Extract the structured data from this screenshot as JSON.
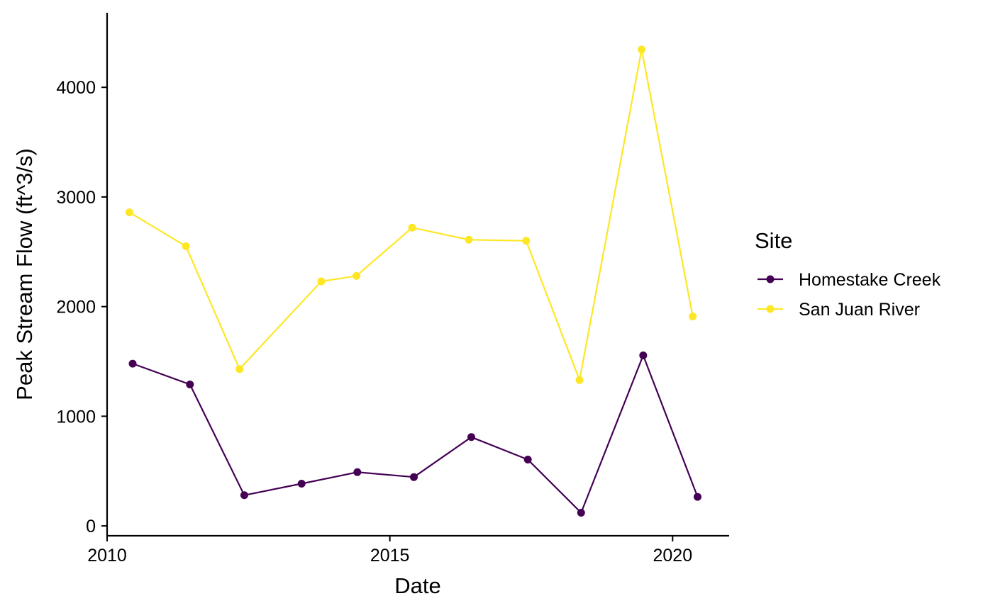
{
  "chart_data": {
    "type": "line",
    "title": "",
    "xlabel": "Date",
    "ylabel": "Peak Stream Flow (ft^3/s)",
    "xlim": [
      "2010-01-01",
      "2020-12-31"
    ],
    "ylim": [
      -90,
      4680
    ],
    "x_ticks": [
      {
        "value": "2010-01-01",
        "label": "2010"
      },
      {
        "value": "2015-01-01",
        "label": "2015"
      },
      {
        "value": "2020-01-01",
        "label": "2020"
      }
    ],
    "y_ticks": [
      0,
      1000,
      2000,
      3000,
      4000
    ],
    "grid": false,
    "legend": {
      "title": "Site",
      "position": "right"
    },
    "series": [
      {
        "name": "Homestake Creek",
        "color": "#440154",
        "points": [
          {
            "x": "2010-06-15",
            "y": 1480
          },
          {
            "x": "2011-06-20",
            "y": 1290
          },
          {
            "x": "2012-06-05",
            "y": 280
          },
          {
            "x": "2013-06-10",
            "y": 385
          },
          {
            "x": "2014-06-05",
            "y": 490
          },
          {
            "x": "2015-06-05",
            "y": 445
          },
          {
            "x": "2016-06-10",
            "y": 810
          },
          {
            "x": "2017-06-10",
            "y": 605
          },
          {
            "x": "2018-05-20",
            "y": 120
          },
          {
            "x": "2019-06-25",
            "y": 1555
          },
          {
            "x": "2020-06-10",
            "y": 265
          }
        ]
      },
      {
        "name": "San Juan River",
        "color": "#FDE725",
        "points": [
          {
            "x": "2010-05-25",
            "y": 2860
          },
          {
            "x": "2011-05-25",
            "y": 2550
          },
          {
            "x": "2012-05-05",
            "y": 1430
          },
          {
            "x": "2013-10-15",
            "y": 2230
          },
          {
            "x": "2014-05-30",
            "y": 2280
          },
          {
            "x": "2015-05-25",
            "y": 2720
          },
          {
            "x": "2016-05-25",
            "y": 2610
          },
          {
            "x": "2017-05-30",
            "y": 2600
          },
          {
            "x": "2018-05-10",
            "y": 1330
          },
          {
            "x": "2019-06-15",
            "y": 4345
          },
          {
            "x": "2020-05-10",
            "y": 1910
          }
        ]
      }
    ]
  }
}
